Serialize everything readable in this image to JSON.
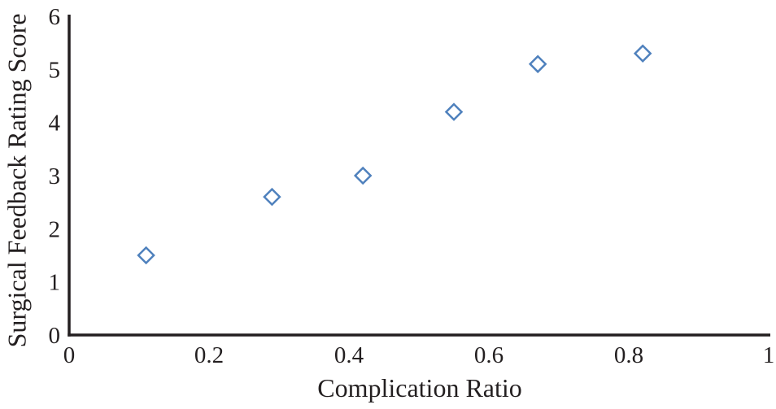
{
  "figure": {
    "background": "#ffffff"
  },
  "chart_data": {
    "type": "scatter",
    "title": "",
    "xlabel": "Complication Ratio",
    "ylabel": "Surgical Feedback Rating Score",
    "xlim": [
      0,
      1
    ],
    "ylim": [
      0,
      6
    ],
    "x_tick_values": [
      0,
      0.2,
      0.4,
      0.6,
      0.8,
      1
    ],
    "x_tick_labels": [
      "0",
      "0.2",
      "0.4",
      "0.6",
      "0.8",
      "1"
    ],
    "y_tick_values": [
      0,
      1,
      2,
      3,
      4,
      5,
      6
    ],
    "y_tick_labels": [
      "0",
      "1",
      "2",
      "3",
      "4",
      "5",
      "6"
    ],
    "grid": false,
    "legend": "none",
    "marker": "open-diamond",
    "marker_color": "#4f81bd",
    "axis_color": "#231f20",
    "text_color": "#231f20",
    "points": [
      {
        "x": 0.11,
        "y": 1.5
      },
      {
        "x": 0.29,
        "y": 2.6
      },
      {
        "x": 0.42,
        "y": 3.0
      },
      {
        "x": 0.55,
        "y": 4.2
      },
      {
        "x": 0.67,
        "y": 5.1
      },
      {
        "x": 0.82,
        "y": 5.3
      }
    ]
  }
}
